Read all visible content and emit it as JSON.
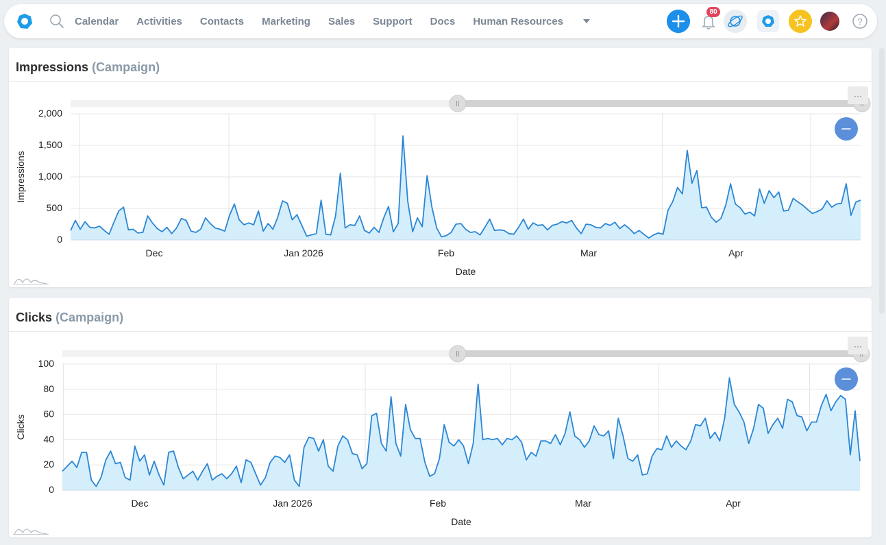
{
  "nav": {
    "items": [
      "Calendar",
      "Activities",
      "Contacts",
      "Marketing",
      "Sales",
      "Support",
      "Docs",
      "Human Resources"
    ],
    "notification_count": "80"
  },
  "colors": {
    "accent": "#1d8fe8",
    "line": "#2b86d4",
    "area": "#d4eefb",
    "badge": "#e2445c",
    "star": "#f6c323"
  },
  "icons": [
    "app-logo-icon",
    "search-icon",
    "chevron-down-icon",
    "plus-icon",
    "bell-icon",
    "planet-icon",
    "app-icon",
    "star-icon",
    "avatar",
    "help-icon",
    "minus-icon",
    "more-icon"
  ],
  "panels": [
    {
      "title": "Impressions",
      "subtitle": "(Campaign)"
    },
    {
      "title": "Clicks",
      "subtitle": "(Campaign)"
    }
  ],
  "chart_data": [
    {
      "type": "area",
      "title": "Impressions (Campaign)",
      "xlabel": "Date",
      "ylabel": "Impressions",
      "ylim": [
        0,
        2000
      ],
      "yticks": [
        "0",
        "500",
        "1,000",
        "1,500",
        "2,000"
      ],
      "xticks": [
        "Dec",
        "Jan 2026",
        "Feb",
        "Mar",
        "Apr"
      ],
      "x_range": [
        "2025-11-16",
        "2026-04-27"
      ],
      "grid": true,
      "values": [
        150,
        310,
        170,
        290,
        200,
        190,
        220,
        150,
        90,
        280,
        460,
        520,
        160,
        170,
        110,
        120,
        380,
        270,
        180,
        130,
        200,
        100,
        190,
        340,
        310,
        140,
        120,
        170,
        350,
        260,
        190,
        170,
        140,
        390,
        570,
        320,
        240,
        270,
        240,
        460,
        140,
        260,
        170,
        360,
        620,
        580,
        320,
        400,
        230,
        60,
        80,
        100,
        630,
        90,
        80,
        380,
        1060,
        190,
        240,
        230,
        380,
        150,
        110,
        200,
        120,
        350,
        530,
        130,
        260,
        1650,
        610,
        130,
        350,
        210,
        1020,
        520,
        190,
        50,
        70,
        120,
        250,
        260,
        170,
        120,
        130,
        80,
        200,
        330,
        150,
        160,
        150,
        100,
        90,
        200,
        330,
        170,
        270,
        230,
        240,
        160,
        230,
        250,
        290,
        270,
        310,
        190,
        100,
        250,
        240,
        200,
        190,
        260,
        230,
        280,
        180,
        240,
        180,
        100,
        150,
        90,
        30,
        80,
        110,
        90,
        470,
        610,
        830,
        730,
        1420,
        900,
        1100,
        510,
        520,
        360,
        280,
        340,
        550,
        890,
        570,
        510,
        410,
        440,
        380,
        810,
        580,
        780,
        670,
        760,
        460,
        470,
        660,
        600,
        550,
        480,
        420,
        450,
        490,
        620,
        520,
        570,
        580,
        890,
        390,
        600,
        630
      ]
    },
    {
      "type": "area",
      "title": "Clicks (Campaign)",
      "xlabel": "Date",
      "ylabel": "Clicks",
      "ylim": [
        0,
        100
      ],
      "yticks": [
        "0",
        "20",
        "40",
        "60",
        "80",
        "100"
      ],
      "xticks": [
        "Dec",
        "Jan 2026",
        "Feb",
        "Mar",
        "Apr"
      ],
      "x_range": [
        "2025-11-16",
        "2026-04-27"
      ],
      "grid": true,
      "values": [
        15,
        19,
        23,
        18,
        30,
        30,
        8,
        3,
        10,
        24,
        31,
        21,
        22,
        10,
        8,
        35,
        23,
        28,
        12,
        23,
        12,
        4,
        30,
        31,
        18,
        9,
        12,
        15,
        8,
        15,
        21,
        8,
        11,
        13,
        9,
        13,
        19,
        6,
        24,
        22,
        13,
        4,
        10,
        22,
        27,
        26,
        22,
        28,
        8,
        3,
        34,
        42,
        41,
        31,
        40,
        19,
        15,
        35,
        43,
        40,
        29,
        28,
        17,
        21,
        59,
        61,
        37,
        31,
        74,
        37,
        27,
        68,
        48,
        41,
        41,
        22,
        11,
        13,
        25,
        52,
        38,
        35,
        40,
        35,
        21,
        37,
        84,
        40,
        41,
        40,
        41,
        36,
        41,
        40,
        43,
        38,
        24,
        30,
        27,
        39,
        39,
        37,
        44,
        36,
        45,
        62,
        43,
        40,
        34,
        39,
        51,
        44,
        43,
        47,
        25,
        57,
        43,
        25,
        23,
        28,
        12,
        13,
        27,
        33,
        32,
        43,
        34,
        39,
        35,
        32,
        39,
        52,
        51,
        57,
        41,
        46,
        39,
        57,
        89,
        68,
        62,
        54,
        37,
        49,
        68,
        65,
        45,
        52,
        57,
        49,
        72,
        70,
        59,
        58,
        47,
        54,
        54,
        67,
        76,
        63,
        70,
        75,
        72,
        28,
        63,
        23
      ]
    }
  ]
}
